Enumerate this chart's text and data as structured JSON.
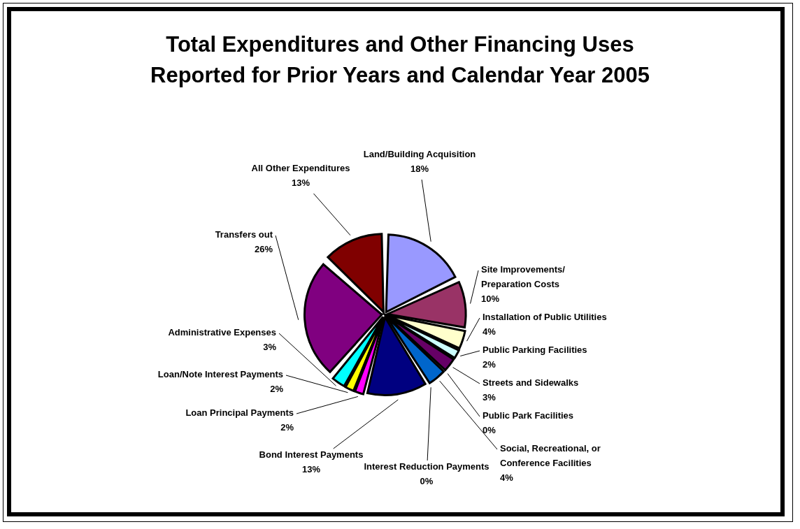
{
  "chart_data": {
    "type": "pie",
    "title": "Total Expenditures and Other Financing Uses Reported for Prior Years and Calendar Year 2005",
    "categories": [
      "Land/Building Acquisition",
      "Site Improvements/ Preparation Costs",
      "Installation of Public Utilities",
      "Public Parking Facilities",
      "Streets and Sidewalks",
      "Public Park Facilities",
      "Social, Recreational, or Conference Facilities",
      "Interest Reduction Payments",
      "Bond Interest Payments",
      "Loan Principal Payments",
      "Loan/Note Interest Payments",
      "Administrative Expenses",
      "Transfers out",
      "All Other Expenditures"
    ],
    "values": [
      18,
      10,
      4,
      2,
      3,
      0,
      4,
      0,
      13,
      2,
      2,
      3,
      26,
      13
    ],
    "value_labels": [
      "18%",
      "10%",
      "4%",
      "2%",
      "3%",
      "0%",
      "4%",
      "0%",
      "13%",
      "2%",
      "2%",
      "3%",
      "26%",
      "13%"
    ],
    "colors": [
      "#9999ff",
      "#993366",
      "#ffffcc",
      "#ccffff",
      "#660066",
      "#ff8080",
      "#0066cc",
      "#ccccff",
      "#000080",
      "#ff00ff",
      "#ffff00",
      "#00ffff",
      "#800080",
      "#800000"
    ],
    "legend": false
  }
}
